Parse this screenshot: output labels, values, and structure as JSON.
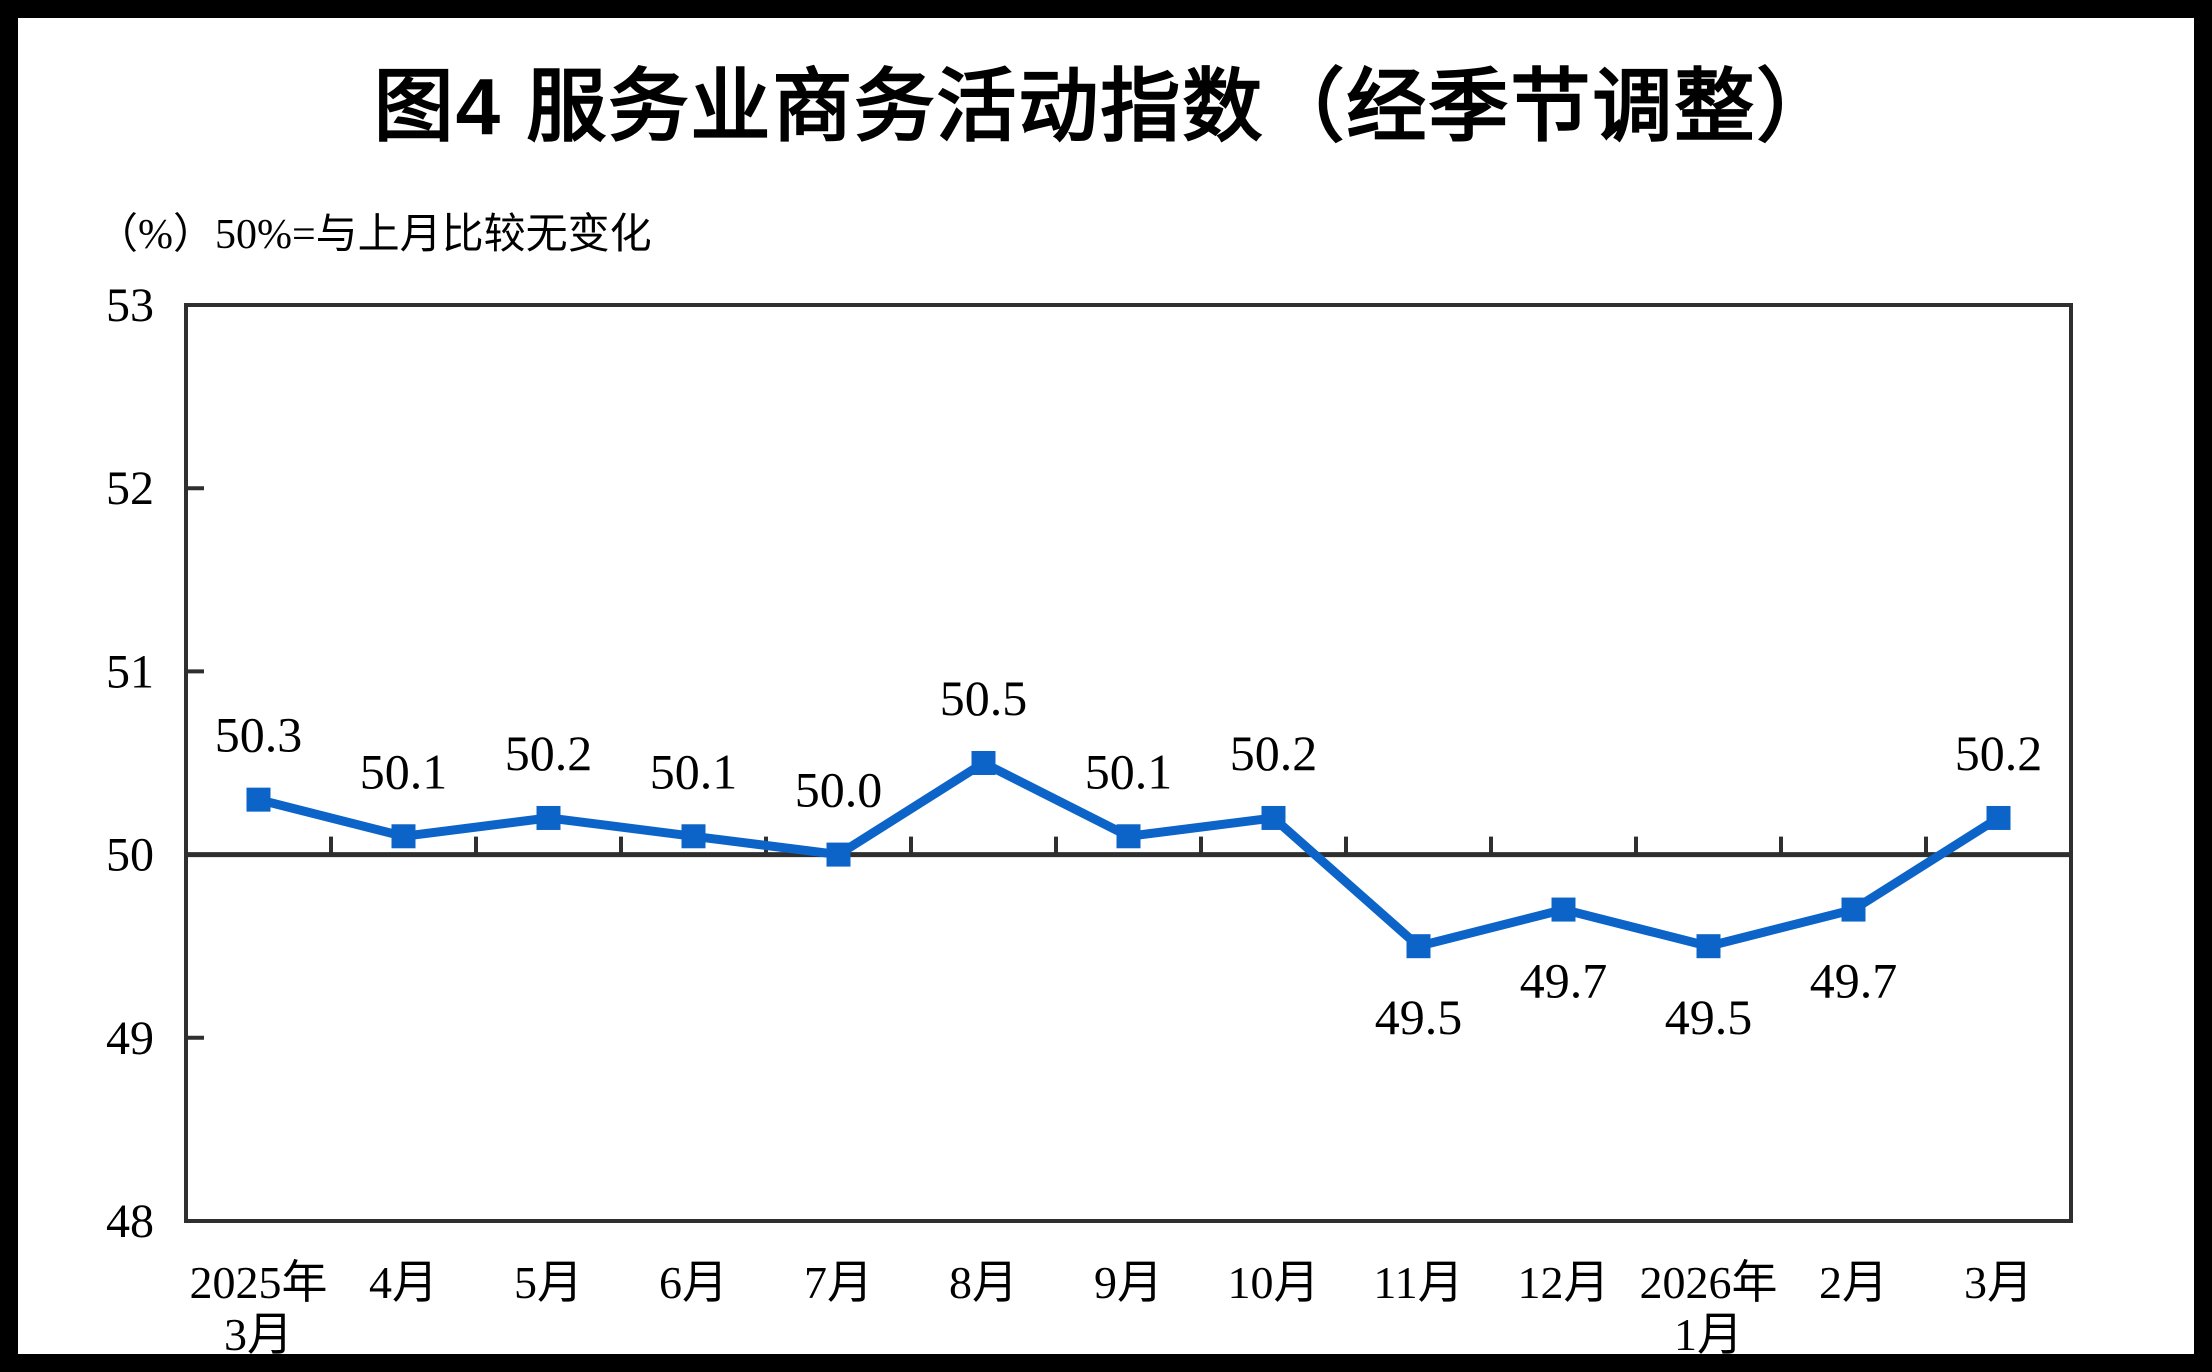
{
  "header": {
    "title": "图4 服务业商务活动指数（经季节调整）",
    "subtitle": "（%）50%=与上月比较无变化"
  },
  "chart_data": {
    "type": "line",
    "title": "图4 服务业商务活动指数（经季节调整）",
    "unit_note": "（%）50%=与上月比较无变化",
    "categories": [
      "2025年\n3月",
      "4月",
      "5月",
      "6月",
      "7月",
      "8月",
      "9月",
      "10月",
      "11月",
      "12月",
      "2026年\n1月",
      "2月",
      "3月"
    ],
    "series": [
      {
        "name": "服务业商务活动指数",
        "values": [
          50.3,
          50.1,
          50.2,
          50.1,
          50.0,
          50.5,
          50.1,
          50.2,
          49.5,
          49.7,
          49.5,
          49.7,
          50.2
        ],
        "labels": [
          "50.3",
          "50.1",
          "50.2",
          "50.1",
          "50.0",
          "50.5",
          "50.1",
          "50.2",
          "49.5",
          "49.7",
          "49.5",
          "49.7",
          "50.2"
        ]
      }
    ],
    "ylim": [
      48,
      53
    ],
    "yticks": [
      48,
      49,
      50,
      51,
      52,
      53
    ],
    "baseline_value": 50,
    "grid": false,
    "legend_position": "none",
    "colors": {
      "line": "#0C64C8",
      "marker": "#0C64C8",
      "axis": "#2F2F2F",
      "text": "#000000",
      "background": "#FFFFFF",
      "page_border": "#000000"
    }
  }
}
